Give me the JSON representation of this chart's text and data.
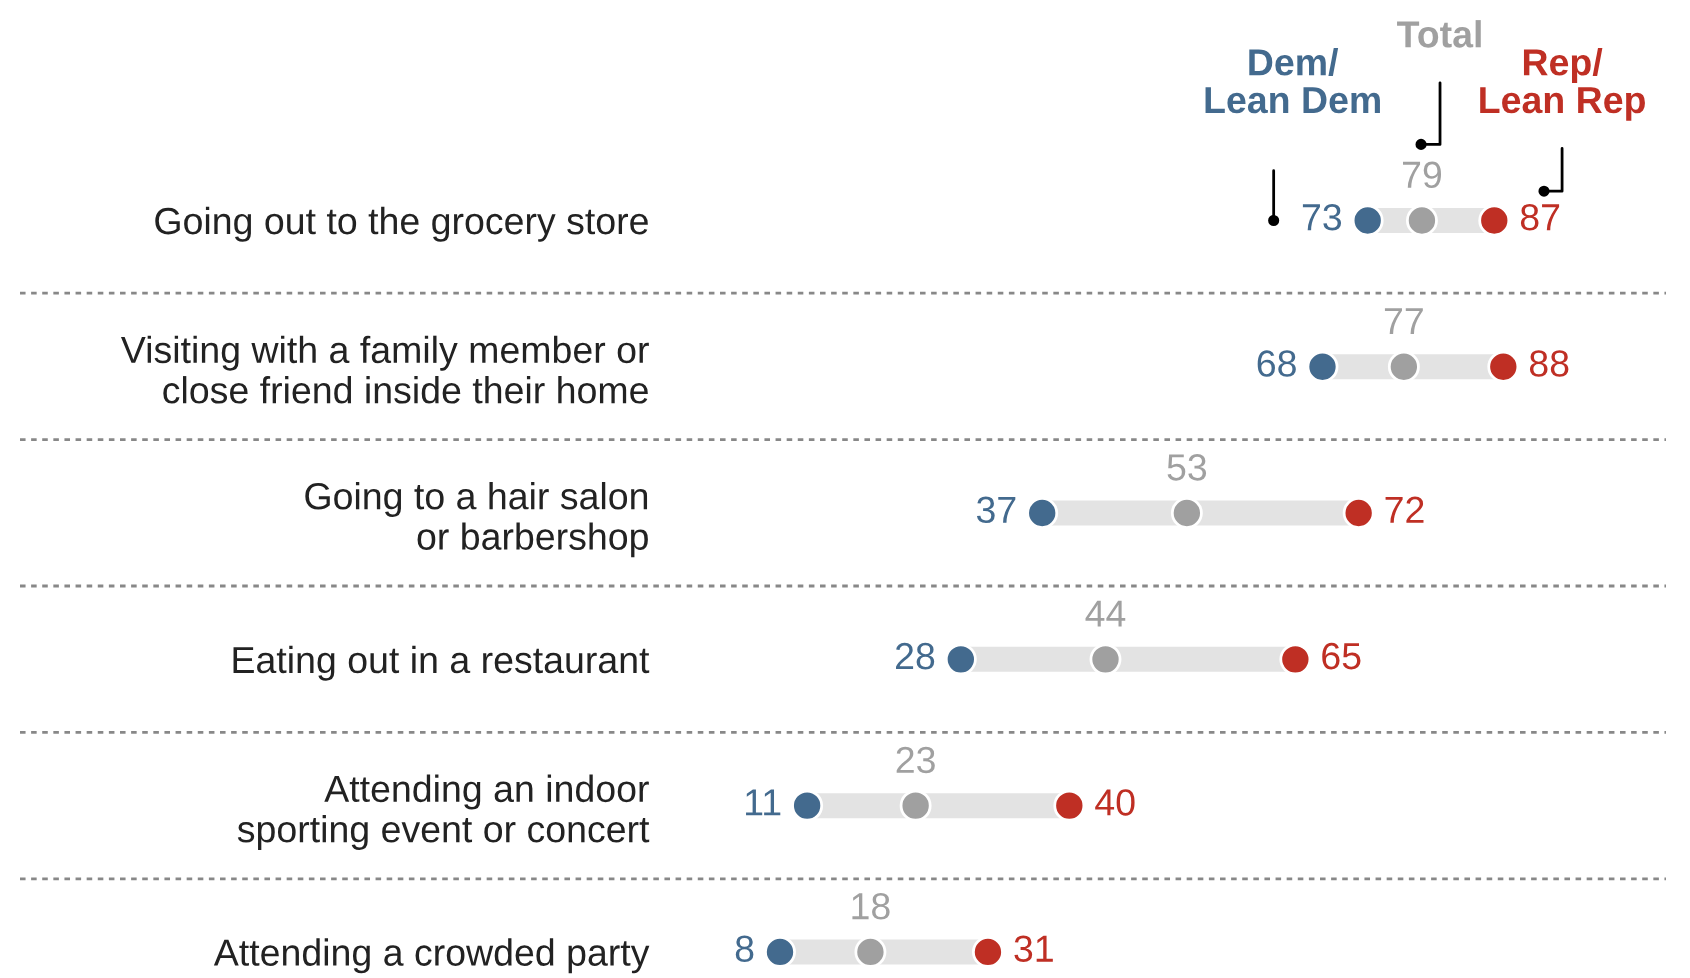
{
  "chart_data": {
    "type": "scatter",
    "orientation": "horizontal",
    "categories": [
      "Going out to the grocery store",
      "Visiting with a family member or\nclose friend inside their home",
      "Going to a hair salon\nor barbershop",
      "Eating out in a restaurant",
      "Attending an indoor\nsporting event or concert",
      "Attending a crowded party"
    ],
    "series": [
      {
        "name": "Dem/\nLean Dem",
        "color": "#436a8e",
        "values": [
          73,
          68,
          37,
          28,
          11,
          8
        ]
      },
      {
        "name": "Total",
        "color": "#a0a0a0",
        "values": [
          79,
          77,
          53,
          44,
          23,
          18
        ]
      },
      {
        "name": "Rep/\nLean Rep",
        "color": "#bf2f24",
        "values": [
          87,
          88,
          72,
          65,
          40,
          31
        ]
      }
    ],
    "tick_labels": "y",
    "data_labels": true,
    "legend": false,
    "grid": false,
    "marker": "circle"
  }
}
